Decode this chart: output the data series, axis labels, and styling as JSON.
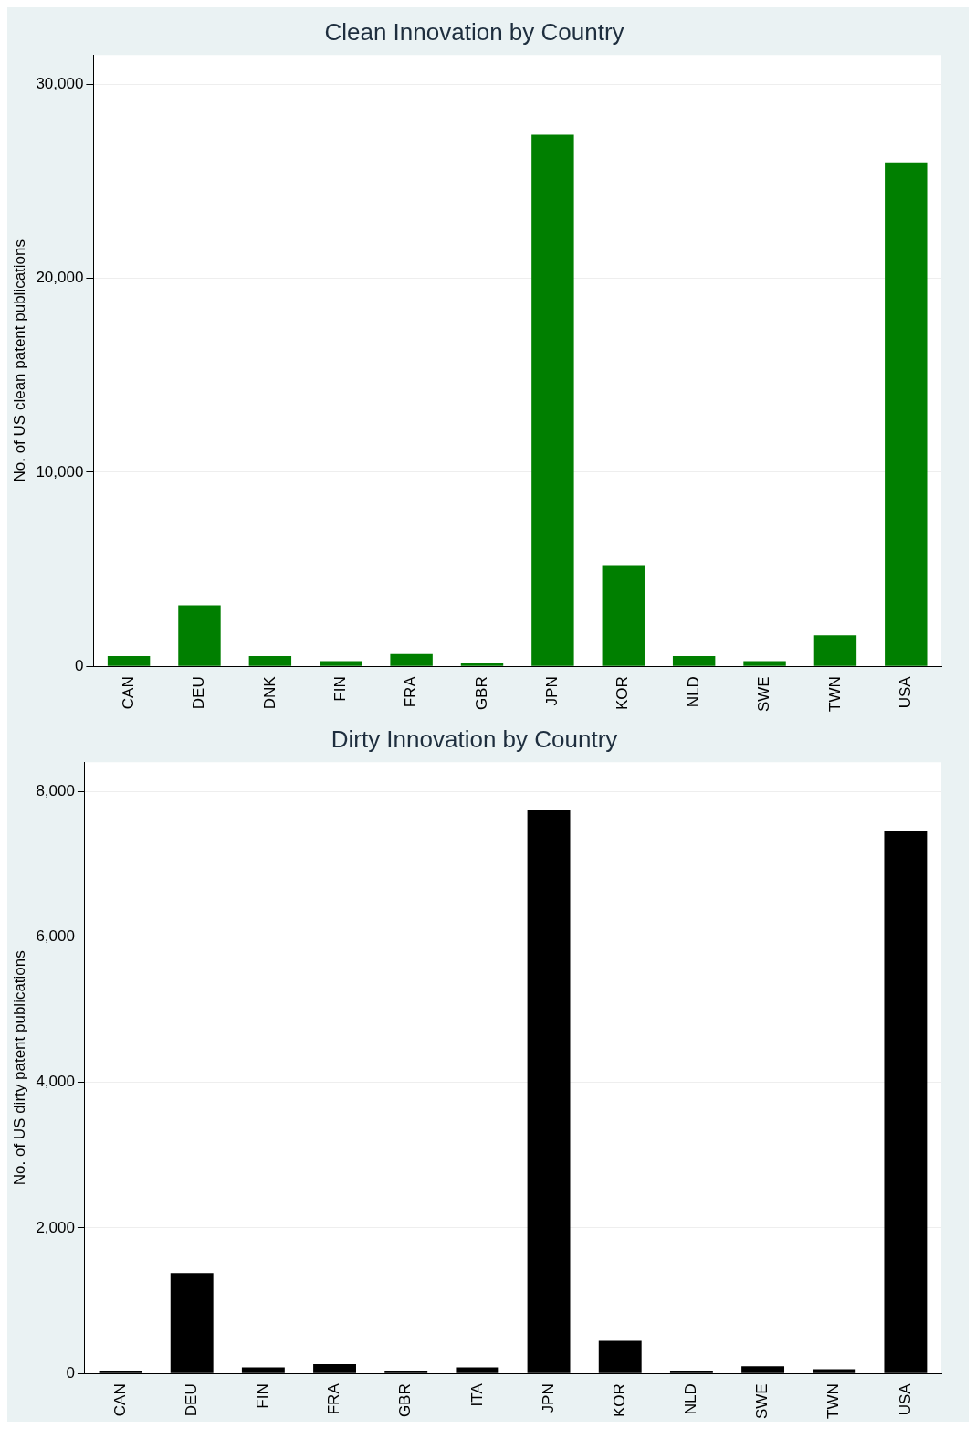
{
  "chart_data": [
    {
      "type": "bar",
      "title": "Clean Innovation by Country",
      "ylabel": "No. of US clean patent publications",
      "categories": [
        "CAN",
        "DEU",
        "DNK",
        "FIN",
        "FRA",
        "GBR",
        "JPN",
        "KOR",
        "NLD",
        "SWE",
        "TWN",
        "USA"
      ],
      "values": [
        530,
        3140,
        530,
        270,
        640,
        160,
        27390,
        5210,
        530,
        270,
        1600,
        25960
      ],
      "color": "#007f00",
      "ylim": [
        0,
        31500
      ],
      "yticks": [
        {
          "value": 0,
          "label": "0"
        },
        {
          "value": 10000,
          "label": "10,000"
        },
        {
          "value": 20000,
          "label": "20,000"
        },
        {
          "value": 30000,
          "label": "30,000"
        }
      ],
      "grid": "y"
    },
    {
      "type": "bar",
      "title": "Dirty Innovation by Country",
      "ylabel": "No. of US dirty patent publications",
      "categories": [
        "CAN",
        "DEU",
        "FIN",
        "FRA",
        "GBR",
        "ITA",
        "JPN",
        "KOR",
        "NLD",
        "SWE",
        "TWN",
        "USA"
      ],
      "values": [
        30,
        1380,
        85,
        130,
        30,
        85,
        7750,
        450,
        30,
        100,
        60,
        7450
      ],
      "color": "#000000",
      "ylim": [
        0,
        8400
      ],
      "yticks": [
        {
          "value": 0,
          "label": "0"
        },
        {
          "value": 2000,
          "label": "2,000"
        },
        {
          "value": 4000,
          "label": "4,000"
        },
        {
          "value": 6000,
          "label": "6,000"
        },
        {
          "value": 8000,
          "label": "8,000"
        }
      ],
      "grid": "y"
    }
  ]
}
